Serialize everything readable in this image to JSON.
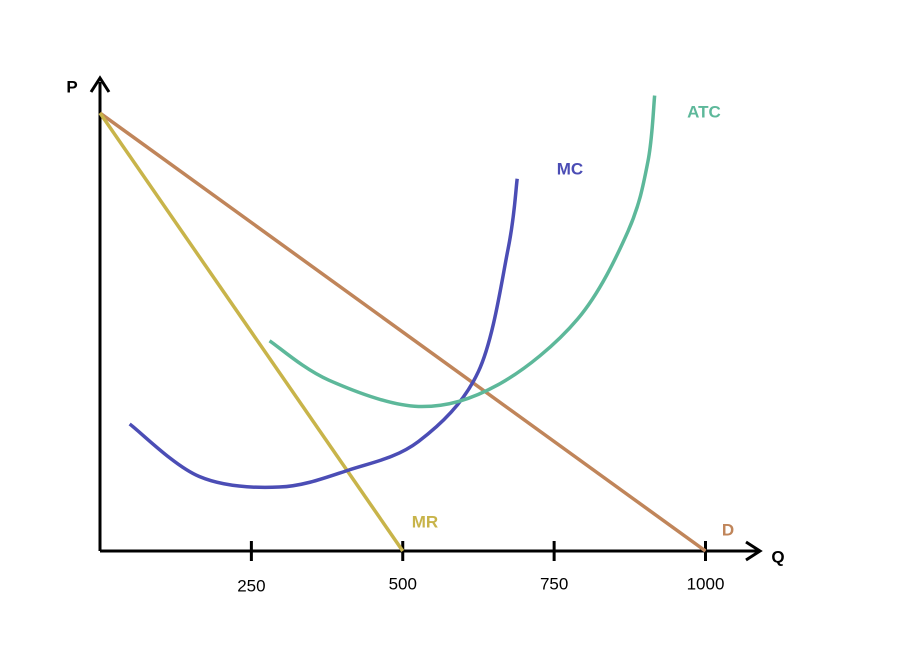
{
  "chart_data": {
    "type": "line",
    "x_label": "Q",
    "y_label": "P",
    "xlim": [
      0,
      1090
    ],
    "ylim": [
      0,
      108
    ],
    "xticks": [
      250,
      500,
      750,
      1000
    ],
    "series": [
      {
        "name": "D",
        "color": "#c0855a",
        "x": [
          0,
          1000
        ],
        "values": [
          100,
          0
        ]
      },
      {
        "name": "MR",
        "color": "#c8b44a",
        "x": [
          0,
          500
        ],
        "values": [
          100,
          0
        ]
      },
      {
        "name": "MC",
        "color": "#4b4db5",
        "x": [
          49,
          164,
          296,
          411,
          526,
          625,
          674,
          689
        ],
        "values": [
          29,
          17,
          14.6,
          18.5,
          25,
          41,
          69,
          85
        ]
      },
      {
        "name": "ATC",
        "color": "#5db89a",
        "x": [
          280,
          378,
          526,
          658,
          789,
          872,
          905,
          916
        ],
        "values": [
          48,
          39,
          33,
          38,
          53,
          73,
          89,
          104
        ]
      }
    ]
  }
}
